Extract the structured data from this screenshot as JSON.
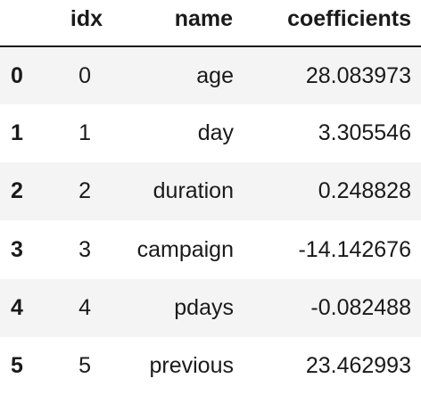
{
  "table": {
    "columns": {
      "index": "",
      "idx": "idx",
      "name": "name",
      "coefficients": "coefficients"
    },
    "rows": [
      {
        "index": "0",
        "idx": "0",
        "name": "age",
        "coefficients": "28.083973"
      },
      {
        "index": "1",
        "idx": "1",
        "name": "day",
        "coefficients": "3.305546"
      },
      {
        "index": "2",
        "idx": "2",
        "name": "duration",
        "coefficients": "0.248828"
      },
      {
        "index": "3",
        "idx": "3",
        "name": "campaign",
        "coefficients": "-14.142676"
      },
      {
        "index": "4",
        "idx": "4",
        "name": "pdays",
        "coefficients": "-0.082488"
      },
      {
        "index": "5",
        "idx": "5",
        "name": "previous",
        "coefficients": "23.462993"
      }
    ]
  },
  "colors": {
    "text": "#1a1a1a",
    "striped_row": "#f4f4f4",
    "background": "#ffffff"
  }
}
